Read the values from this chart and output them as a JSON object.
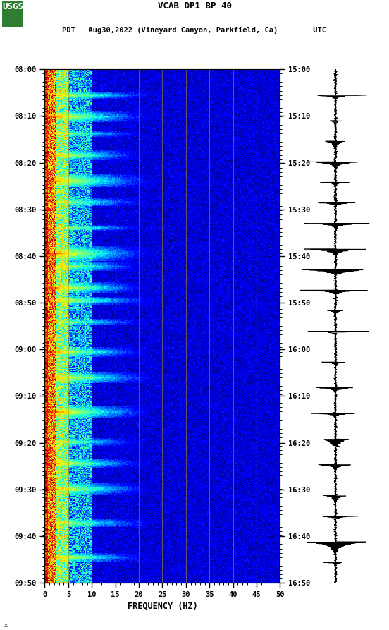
{
  "title_line1": "VCAB DP1 BP 40",
  "title_line2": "PDT   Aug30,2022 (Vineyard Canyon, Parkfield, Ca)        UTC",
  "xlabel": "FREQUENCY (HZ)",
  "freq_min": 0,
  "freq_max": 50,
  "time_labels_left": [
    "08:00",
    "08:10",
    "08:20",
    "08:30",
    "08:40",
    "08:50",
    "09:00",
    "09:10",
    "09:20",
    "09:30",
    "09:40",
    "09:50"
  ],
  "time_labels_right": [
    "15:00",
    "15:10",
    "15:20",
    "15:30",
    "15:40",
    "15:50",
    "16:00",
    "16:10",
    "16:20",
    "16:30",
    "16:40",
    "16:50"
  ],
  "freq_ticks": [
    0,
    5,
    10,
    15,
    20,
    25,
    30,
    35,
    40,
    45,
    50
  ],
  "n_time": 600,
  "n_freq": 250,
  "background_color": "#ffffff",
  "colormap": "jet",
  "vlines_freq": [
    5,
    10,
    15,
    20,
    25,
    30,
    35,
    40,
    45
  ],
  "vline_color": "#b8960a",
  "vline_alpha": 0.55,
  "seed": 42,
  "event_rows": [
    30,
    55,
    75,
    100,
    130,
    155,
    185,
    215,
    230,
    255,
    270,
    295,
    330,
    360,
    400,
    435,
    460,
    490,
    530,
    570
  ],
  "event_freq_extents": [
    125,
    120,
    115,
    110,
    125,
    120,
    115,
    120,
    110,
    115,
    125,
    120,
    115,
    125,
    120,
    110,
    115,
    120,
    125,
    115
  ],
  "event_strengths": [
    0.85,
    0.9,
    0.8,
    0.88,
    0.92,
    0.85,
    0.8,
    0.95,
    0.88,
    0.92,
    0.9,
    0.85,
    0.88,
    0.9,
    0.95,
    0.85,
    0.88,
    0.9,
    0.85,
    0.88
  ],
  "event_widths": [
    4,
    6,
    3,
    5,
    7,
    4,
    3,
    8,
    5,
    6,
    4,
    3,
    5,
    6,
    7,
    4,
    5,
    6,
    4,
    5
  ],
  "seismic_events_t": [
    0.05,
    0.1,
    0.14,
    0.18,
    0.22,
    0.26,
    0.3,
    0.35,
    0.39,
    0.43,
    0.47,
    0.51,
    0.57,
    0.62,
    0.67,
    0.72,
    0.77,
    0.83,
    0.87,
    0.92,
    0.96
  ]
}
